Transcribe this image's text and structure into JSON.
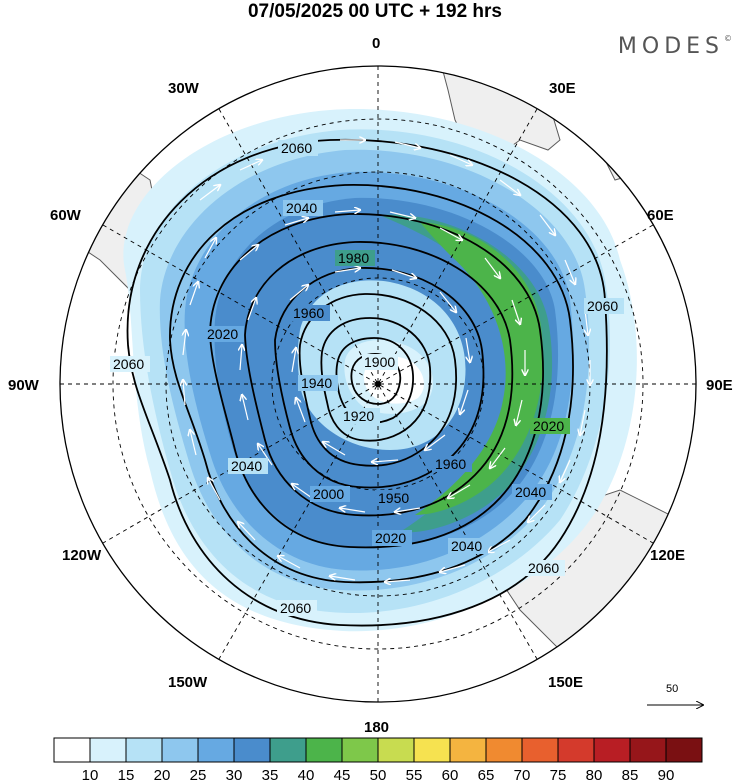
{
  "title": "07/05/2025  00 UTC  + 192 hrs",
  "brand": "MODES",
  "brand_mark": "©",
  "longitude_labels": [
    "0",
    "30E",
    "60E",
    "90E",
    "120E",
    "150E",
    "180",
    "150W",
    "120W",
    "90W",
    "60W",
    "30W"
  ],
  "contour_labels": [
    "1900",
    "1920",
    "1940",
    "1950",
    "1960",
    "1980",
    "2000",
    "2020",
    "2040",
    "2060"
  ],
  "colorbar": {
    "ticks": [
      "10",
      "15",
      "20",
      "25",
      "30",
      "35",
      "40",
      "45",
      "50",
      "55",
      "60",
      "65",
      "70",
      "75",
      "80",
      "85",
      "90"
    ],
    "colors": [
      "#ffffff",
      "#d8f2fc",
      "#b6e2f6",
      "#8ec7ee",
      "#66a9e2",
      "#4a8ccc",
      "#3e9e8c",
      "#4cb44a",
      "#7ec84a",
      "#c8dc50",
      "#f6e250",
      "#f4b440",
      "#f08a30",
      "#e8602e",
      "#d43a2c",
      "#b81e24",
      "#96161a",
      "#7a1012"
    ]
  },
  "reference_vector": {
    "label": "50"
  },
  "colors": {
    "land": "#efefef",
    "coast": "#5a5a5a",
    "contour": "#000000",
    "grid": "#000000"
  }
}
